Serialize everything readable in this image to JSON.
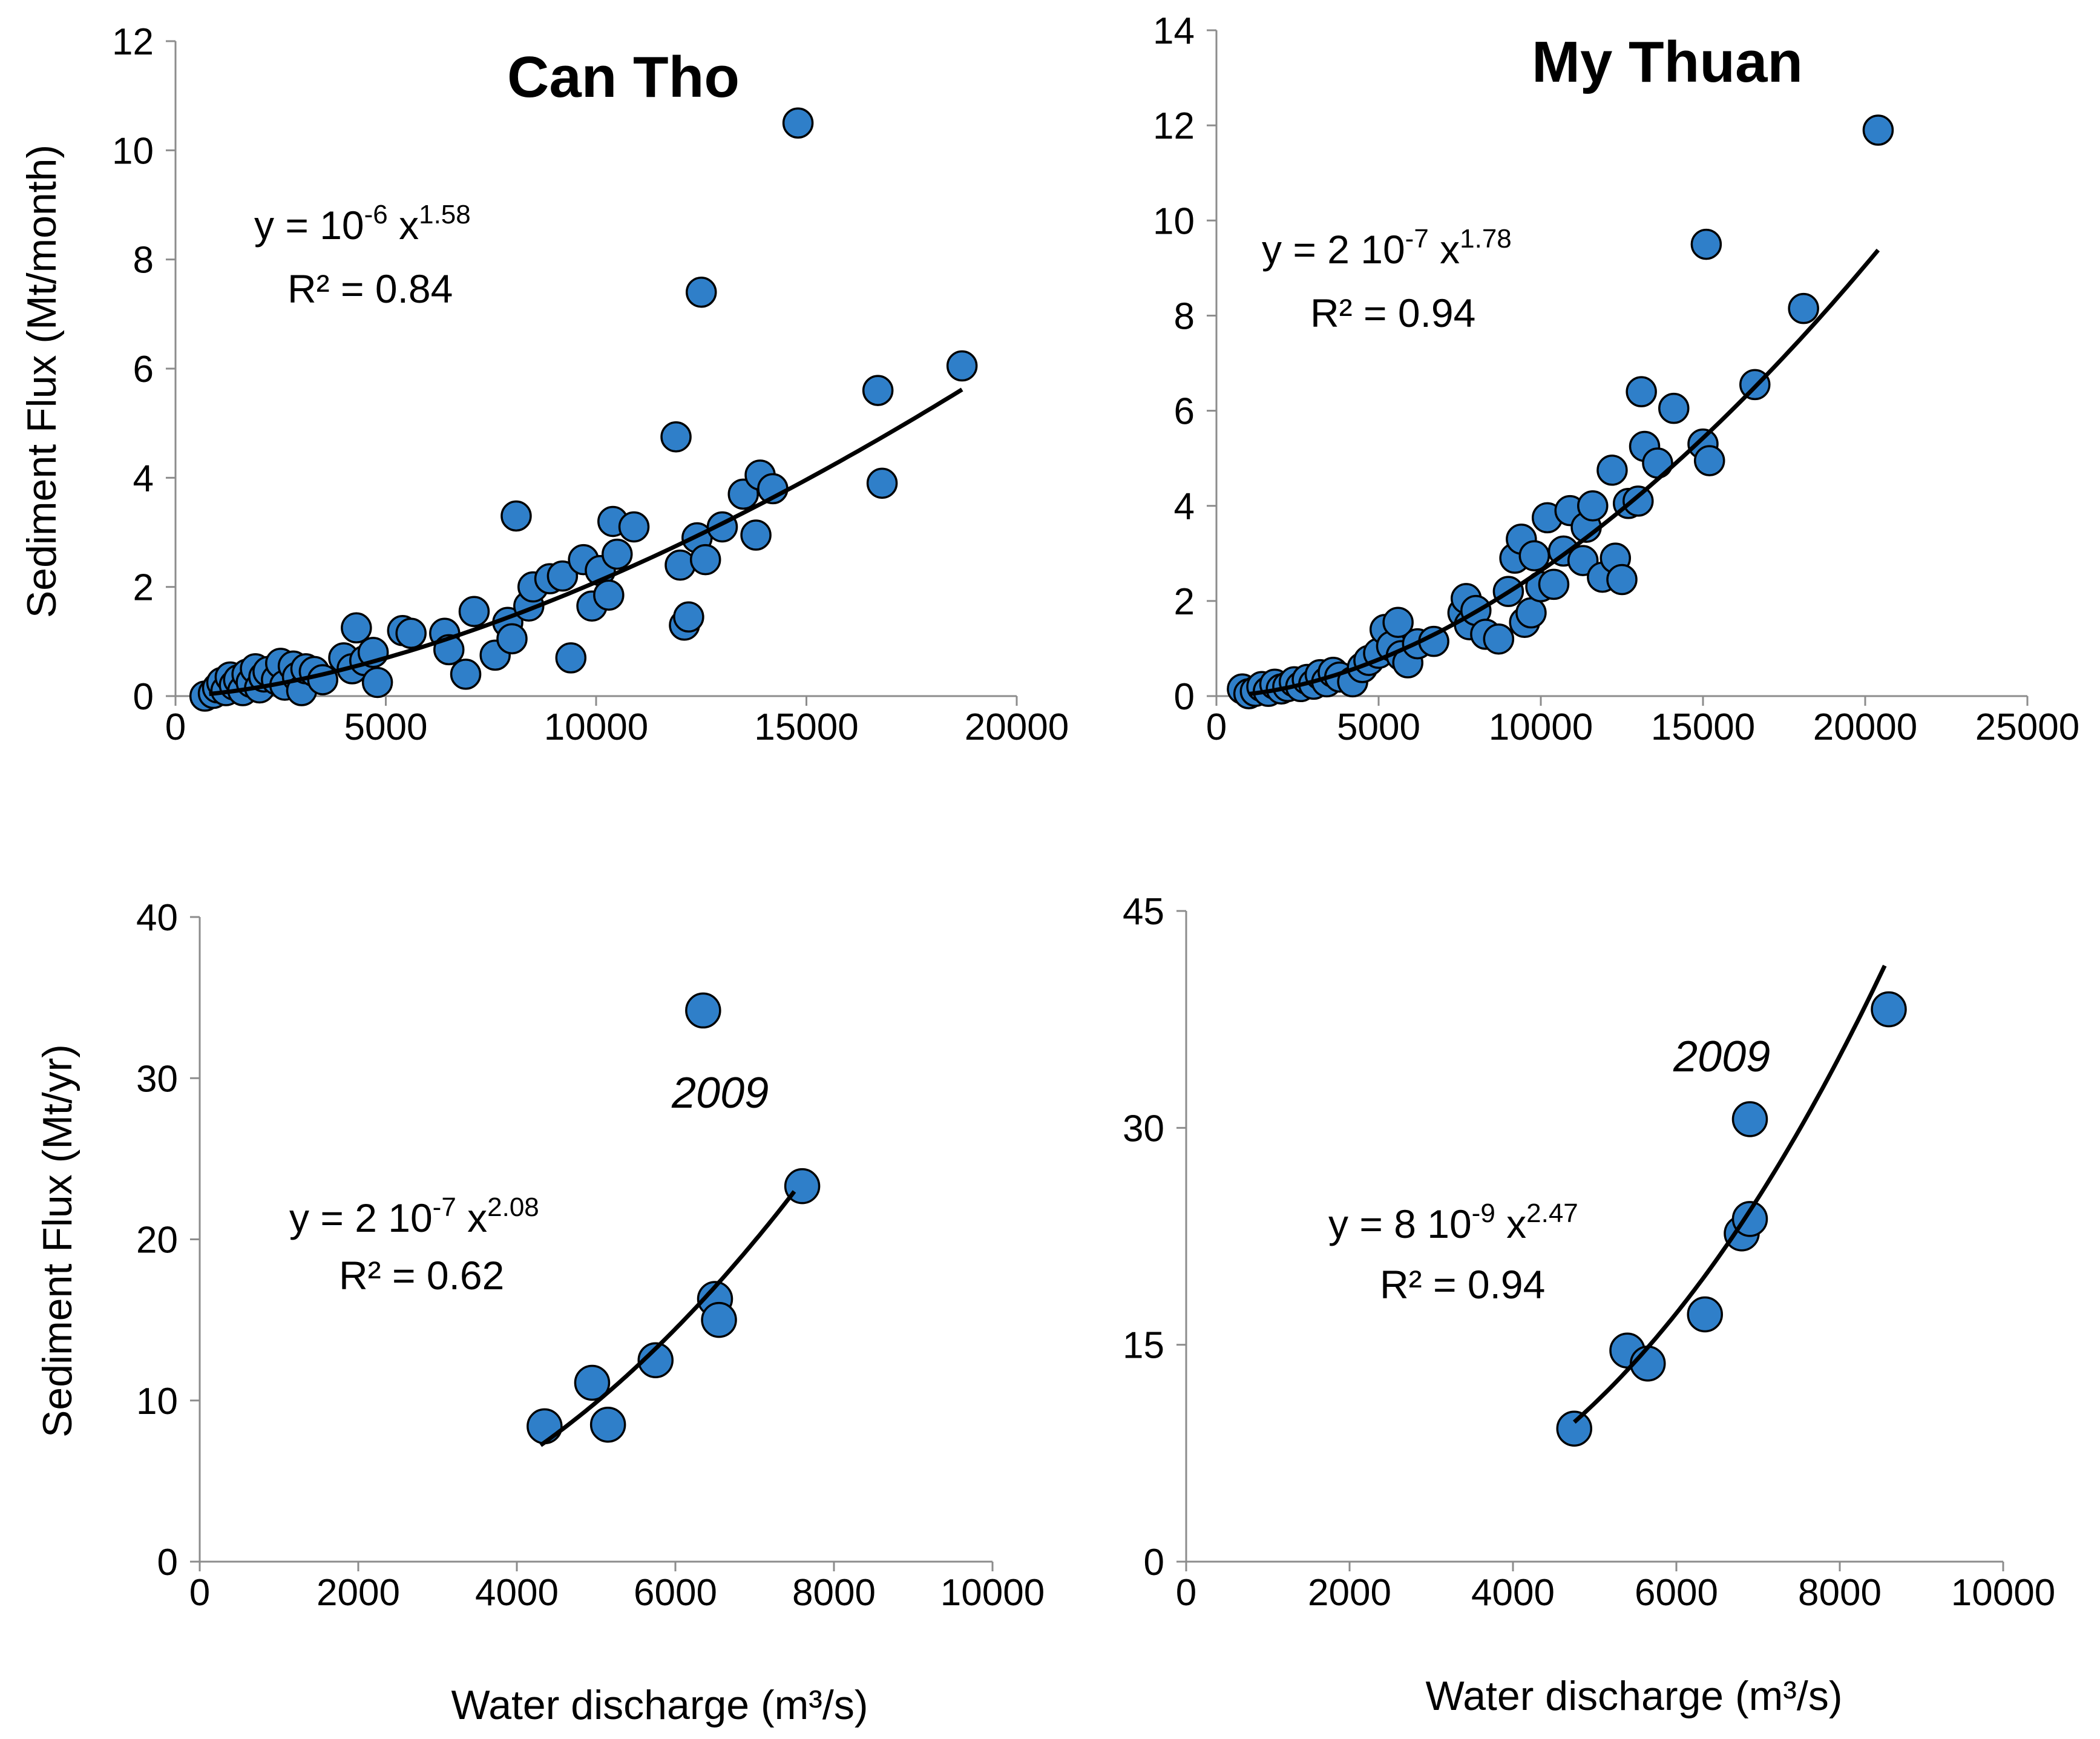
{
  "figure": {
    "colors": {
      "marker": "#2f7fc9",
      "marker_edge": "#000000",
      "fit_line": "#000000",
      "axis": "#8c8c8c"
    }
  },
  "chart_data": [
    {
      "id": "can-tho-monthly",
      "type": "scatter",
      "title": "Can Tho",
      "xlabel": "",
      "ylabel": "Sediment Flux (Mt/month)",
      "xlim": [
        0,
        20000
      ],
      "ylim": [
        0,
        12
      ],
      "xticks": [
        "0",
        "5000",
        "10000",
        "15000",
        "20000"
      ],
      "yticks": [
        "0",
        "2",
        "4",
        "6",
        "8",
        "10",
        "12"
      ],
      "equation": {
        "prefix": "y = 10",
        "coef_exp": "-6",
        "mid": " x",
        "power": "1.58"
      },
      "r2": "R² = 0.84",
      "fit": {
        "a": 1e-06,
        "b": 1.58,
        "xmin": 800,
        "xmax": 18700
      },
      "points": [
        [
          700,
          0.0
        ],
        [
          900,
          0.05
        ],
        [
          1000,
          0.15
        ],
        [
          1100,
          0.25
        ],
        [
          1200,
          0.1
        ],
        [
          1300,
          0.35
        ],
        [
          1400,
          0.2
        ],
        [
          1500,
          0.3
        ],
        [
          1600,
          0.1
        ],
        [
          1700,
          0.4
        ],
        [
          1800,
          0.25
        ],
        [
          1900,
          0.5
        ],
        [
          2000,
          0.15
        ],
        [
          2100,
          0.35
        ],
        [
          2200,
          0.45
        ],
        [
          2400,
          0.3
        ],
        [
          2500,
          0.6
        ],
        [
          2600,
          0.2
        ],
        [
          2800,
          0.55
        ],
        [
          2900,
          0.35
        ],
        [
          3000,
          0.1
        ],
        [
          3100,
          0.5
        ],
        [
          3300,
          0.45
        ],
        [
          3500,
          0.3
        ],
        [
          4000,
          0.7
        ],
        [
          4200,
          0.5
        ],
        [
          4300,
          1.25
        ],
        [
          4500,
          0.65
        ],
        [
          4700,
          0.8
        ],
        [
          4800,
          0.25
        ],
        [
          5400,
          1.2
        ],
        [
          5600,
          1.15
        ],
        [
          6400,
          1.15
        ],
        [
          6500,
          0.85
        ],
        [
          6900,
          0.4
        ],
        [
          7100,
          1.55
        ],
        [
          7600,
          0.75
        ],
        [
          7900,
          1.35
        ],
        [
          8000,
          1.05
        ],
        [
          8100,
          3.3
        ],
        [
          8400,
          1.65
        ],
        [
          8500,
          2.0
        ],
        [
          8900,
          2.15
        ],
        [
          9200,
          2.2
        ],
        [
          9400,
          0.7
        ],
        [
          9700,
          2.5
        ],
        [
          9900,
          1.65
        ],
        [
          10100,
          2.3
        ],
        [
          10300,
          1.85
        ],
        [
          10400,
          3.2
        ],
        [
          10500,
          2.6
        ],
        [
          10900,
          3.1
        ],
        [
          11900,
          4.75
        ],
        [
          12000,
          2.4
        ],
        [
          12100,
          1.3
        ],
        [
          12200,
          1.45
        ],
        [
          12400,
          2.9
        ],
        [
          12500,
          7.4
        ],
        [
          12600,
          2.5
        ],
        [
          13000,
          3.1
        ],
        [
          13500,
          3.7
        ],
        [
          13800,
          2.95
        ],
        [
          13900,
          4.05
        ],
        [
          14200,
          3.8
        ],
        [
          14800,
          10.5
        ],
        [
          16700,
          5.6
        ],
        [
          16800,
          3.9
        ],
        [
          18700,
          6.05
        ]
      ]
    },
    {
      "id": "my-thuan-monthly",
      "type": "scatter",
      "title": "My Thuan",
      "xlabel": "",
      "ylabel": "",
      "xlim": [
        0,
        25000
      ],
      "ylim": [
        0,
        14
      ],
      "xticks": [
        "0",
        "5000",
        "10000",
        "15000",
        "20000",
        "25000"
      ],
      "yticks": [
        "0",
        "2",
        "4",
        "6",
        "8",
        "10",
        "12",
        "14"
      ],
      "equation": {
        "prefix": "y = 2 10",
        "coef_exp": "-7",
        "mid": " x",
        "power": "1.78"
      },
      "r2": "R² = 0.94",
      "fit": {
        "a": 2e-07,
        "b": 1.78,
        "xmin": 1000,
        "xmax": 20400
      },
      "points": [
        [
          800,
          0.15
        ],
        [
          1000,
          0.05
        ],
        [
          1200,
          0.1
        ],
        [
          1400,
          0.2
        ],
        [
          1600,
          0.1
        ],
        [
          1800,
          0.25
        ],
        [
          2000,
          0.15
        ],
        [
          2200,
          0.2
        ],
        [
          2400,
          0.3
        ],
        [
          2600,
          0.2
        ],
        [
          2800,
          0.35
        ],
        [
          3000,
          0.25
        ],
        [
          3200,
          0.45
        ],
        [
          3400,
          0.3
        ],
        [
          3600,
          0.5
        ],
        [
          3800,
          0.4
        ],
        [
          4200,
          0.3
        ],
        [
          4500,
          0.6
        ],
        [
          4700,
          0.75
        ],
        [
          5000,
          0.9
        ],
        [
          5200,
          1.4
        ],
        [
          5400,
          1.05
        ],
        [
          5600,
          1.55
        ],
        [
          5700,
          0.85
        ],
        [
          5900,
          0.7
        ],
        [
          6200,
          1.1
        ],
        [
          6700,
          1.15
        ],
        [
          7600,
          1.75
        ],
        [
          7700,
          2.05
        ],
        [
          7800,
          1.5
        ],
        [
          8000,
          1.8
        ],
        [
          8300,
          1.3
        ],
        [
          8700,
          1.2
        ],
        [
          9000,
          2.2
        ],
        [
          9200,
          2.9
        ],
        [
          9400,
          3.3
        ],
        [
          9500,
          1.55
        ],
        [
          9700,
          1.75
        ],
        [
          9800,
          2.95
        ],
        [
          10000,
          2.3
        ],
        [
          10200,
          3.75
        ],
        [
          10400,
          2.35
        ],
        [
          10700,
          3.05
        ],
        [
          10900,
          3.9
        ],
        [
          11300,
          2.85
        ],
        [
          11400,
          3.55
        ],
        [
          11600,
          4.0
        ],
        [
          11900,
          2.5
        ],
        [
          12200,
          4.75
        ],
        [
          12300,
          2.9
        ],
        [
          12500,
          2.45
        ],
        [
          12700,
          4.05
        ],
        [
          13000,
          4.1
        ],
        [
          13100,
          6.4
        ],
        [
          13200,
          5.25
        ],
        [
          13600,
          4.9
        ],
        [
          14100,
          6.05
        ],
        [
          15000,
          5.3
        ],
        [
          15100,
          9.5
        ],
        [
          15200,
          4.95
        ],
        [
          16600,
          6.55
        ],
        [
          18100,
          8.15
        ],
        [
          20400,
          11.9
        ]
      ]
    },
    {
      "id": "can-tho-annual",
      "type": "scatter",
      "title": "",
      "xlabel": "Water discharge (m³/s)",
      "ylabel": "Sediment Flux (Mt/yr)",
      "xlim": [
        0,
        10000
      ],
      "ylim": [
        0,
        40
      ],
      "xticks": [
        "0",
        "2000",
        "4000",
        "6000",
        "8000",
        "10000"
      ],
      "yticks": [
        "0",
        "10",
        "20",
        "30",
        "40"
      ],
      "equation": {
        "prefix": "y = 2 10",
        "coef_exp": "-7",
        "mid": " x",
        "power": "2.08"
      },
      "r2": "R² = 0.62",
      "annotation": "2009",
      "fit": {
        "a": 2e-07,
        "b": 2.08,
        "xmin": 4300,
        "xmax": 7500
      },
      "points": [
        [
          4350,
          8.4
        ],
        [
          4950,
          11.1
        ],
        [
          5150,
          8.5
        ],
        [
          5750,
          12.5
        ],
        [
          6350,
          34.2
        ],
        [
          6500,
          16.3
        ],
        [
          6550,
          15.0
        ],
        [
          7600,
          23.3
        ]
      ]
    },
    {
      "id": "my-thuan-annual",
      "type": "scatter",
      "title": "",
      "xlabel": "Water discharge (m³/s)",
      "ylabel": "",
      "xlim": [
        0,
        10000
      ],
      "ylim": [
        0,
        45
      ],
      "xticks": [
        "0",
        "2000",
        "4000",
        "6000",
        "8000",
        "10000"
      ],
      "yticks": [
        "0",
        "15",
        "30",
        "45"
      ],
      "equation": {
        "prefix": "y = 8 10",
        "coef_exp": "-9",
        "mid": " x",
        "power": "2.47"
      },
      "r2": "R² = 0.94",
      "annotation": "2009",
      "fit": {
        "a": 8e-09,
        "b": 2.47,
        "xmin": 4750,
        "xmax": 8550
      },
      "points": [
        [
          4750,
          9.2
        ],
        [
          5400,
          14.6
        ],
        [
          5650,
          13.7
        ],
        [
          6350,
          17.1
        ],
        [
          6800,
          22.7
        ],
        [
          6900,
          23.7
        ],
        [
          6900,
          30.6
        ],
        [
          8600,
          38.2
        ]
      ]
    }
  ]
}
